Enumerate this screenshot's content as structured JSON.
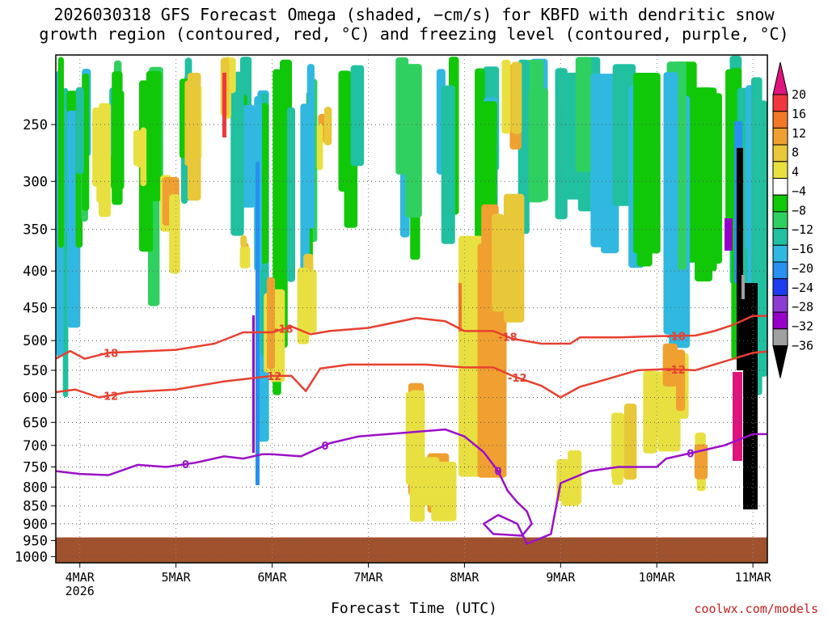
{
  "title": "2026030318 GFS Forecast Omega (shaded, −cm/s) for KBFD with dendritic snow\ngrowth region (contoured, red, °C) and freezing level (contoured, purple, °C)",
  "credit": "coolwx.com/models",
  "chart_data": {
    "type": "heatmap",
    "title": "2026030318 GFS Forecast Omega (shaded, −cm/s) for KBFD with dendritic snow growth region (contoured, red, °C) and freezing level (contoured, purple, °C)",
    "xlabel": "Forecast Time (UTC)",
    "ylabel": "",
    "x_ticks": [
      "4MAR",
      "5MAR",
      "6MAR",
      "7MAR",
      "8MAR",
      "9MAR",
      "10MAR",
      "11MAR"
    ],
    "x_tick_year": "2026",
    "xlim_days": [
      3.75,
      11.15
    ],
    "y_ticks": [
      250,
      300,
      350,
      400,
      450,
      500,
      550,
      600,
      650,
      700,
      750,
      800,
      850,
      900,
      950,
      1000
    ],
    "ylim": [
      200,
      1020
    ],
    "y_scale": "log-pressure",
    "grid": true,
    "colorbar": {
      "labels": [
        "20",
        "16",
        "12",
        "8",
        "4",
        "−4",
        "−8",
        "−12",
        "−16",
        "−20",
        "−24",
        "−28",
        "−32",
        "−36"
      ],
      "colors": [
        "#e0147e",
        "#f0383c",
        "#f07828",
        "#f0a030",
        "#e8c838",
        "#e8e040",
        "#ffffff",
        "#10c808",
        "#30d060",
        "#20c0a0",
        "#30b8e0",
        "#2890f0",
        "#1e3cf0",
        "#8c3cd0",
        "#9600c8",
        "#a0a0a0",
        "#000000"
      ]
    },
    "contours": [
      {
        "color": "#e84030",
        "level": "-18",
        "points": [
          [
            3.75,
            530
          ],
          [
            3.9,
            517
          ],
          [
            4.05,
            530
          ],
          [
            4.3,
            520
          ],
          [
            4.6,
            518
          ],
          [
            5.0,
            515
          ],
          [
            5.4,
            505
          ],
          [
            5.7,
            487
          ],
          [
            6.0,
            487
          ],
          [
            6.2,
            478
          ],
          [
            6.4,
            490
          ],
          [
            6.6,
            485
          ],
          [
            7.0,
            480
          ],
          [
            7.5,
            465
          ],
          [
            7.8,
            470
          ],
          [
            8.0,
            485
          ],
          [
            8.3,
            485
          ],
          [
            8.5,
            497
          ],
          [
            8.8,
            505
          ],
          [
            9.1,
            505
          ],
          [
            9.2,
            495
          ],
          [
            9.6,
            495
          ],
          [
            10.0,
            493
          ],
          [
            10.4,
            492
          ],
          [
            10.6,
            485
          ],
          [
            10.8,
            475
          ],
          [
            11.0,
            462
          ],
          [
            11.15,
            462
          ]
        ],
        "labels": [
          [
            4.3,
            "-18"
          ],
          [
            6.12,
            "-18"
          ],
          [
            8.45,
            "-18"
          ],
          [
            10.2,
            "-18"
          ]
        ]
      },
      {
        "color": "#e84030",
        "level": "-12",
        "points": [
          [
            3.75,
            590
          ],
          [
            3.95,
            585
          ],
          [
            4.2,
            600
          ],
          [
            4.5,
            590
          ],
          [
            5.0,
            585
          ],
          [
            5.5,
            570
          ],
          [
            6.0,
            560
          ],
          [
            6.2,
            560
          ],
          [
            6.35,
            588
          ],
          [
            6.5,
            547
          ],
          [
            6.8,
            540
          ],
          [
            7.2,
            540
          ],
          [
            7.6,
            540
          ],
          [
            8.0,
            545
          ],
          [
            8.3,
            545
          ],
          [
            8.5,
            560
          ],
          [
            8.8,
            578
          ],
          [
            9.0,
            600
          ],
          [
            9.2,
            580
          ],
          [
            9.5,
            565
          ],
          [
            9.8,
            550
          ],
          [
            10.1,
            548
          ],
          [
            10.4,
            550
          ],
          [
            10.8,
            530
          ],
          [
            11.0,
            520
          ],
          [
            11.15,
            518
          ]
        ],
        "labels": [
          [
            4.3,
            "-12"
          ],
          [
            6.0,
            "-12"
          ],
          [
            8.55,
            "-12"
          ],
          [
            10.2,
            "-12"
          ]
        ]
      },
      {
        "color": "#9b10c8",
        "level": "0",
        "points": [
          [
            3.75,
            760
          ],
          [
            4.0,
            767
          ],
          [
            4.3,
            770
          ],
          [
            4.6,
            745
          ],
          [
            4.9,
            750
          ],
          [
            5.2,
            740
          ],
          [
            5.5,
            725
          ],
          [
            5.7,
            730
          ],
          [
            5.9,
            720
          ],
          [
            6.0,
            720
          ],
          [
            6.3,
            725
          ],
          [
            6.6,
            695
          ],
          [
            6.9,
            680
          ],
          [
            7.2,
            675
          ],
          [
            7.5,
            670
          ],
          [
            7.8,
            665
          ],
          [
            8.0,
            680
          ],
          [
            8.2,
            715
          ],
          [
            8.35,
            760
          ],
          [
            8.45,
            810
          ],
          [
            8.55,
            840
          ],
          [
            8.65,
            865
          ],
          [
            8.7,
            900
          ],
          [
            8.6,
            935
          ],
          [
            8.3,
            930
          ],
          [
            8.2,
            900
          ],
          [
            8.35,
            875
          ],
          [
            8.55,
            900
          ],
          [
            8.65,
            960
          ],
          [
            8.9,
            930
          ],
          [
            9.0,
            790
          ],
          [
            9.3,
            760
          ],
          [
            9.6,
            750
          ],
          [
            10.0,
            750
          ],
          [
            10.1,
            730
          ],
          [
            10.4,
            715
          ],
          [
            10.7,
            700
          ],
          [
            11.0,
            675
          ],
          [
            11.15,
            675
          ]
        ],
        "labels": [
          [
            5.1,
            "0"
          ],
          [
            6.55,
            "0"
          ],
          [
            8.35,
            "0"
          ],
          [
            10.35,
            "0"
          ]
        ]
      }
    ]
  }
}
